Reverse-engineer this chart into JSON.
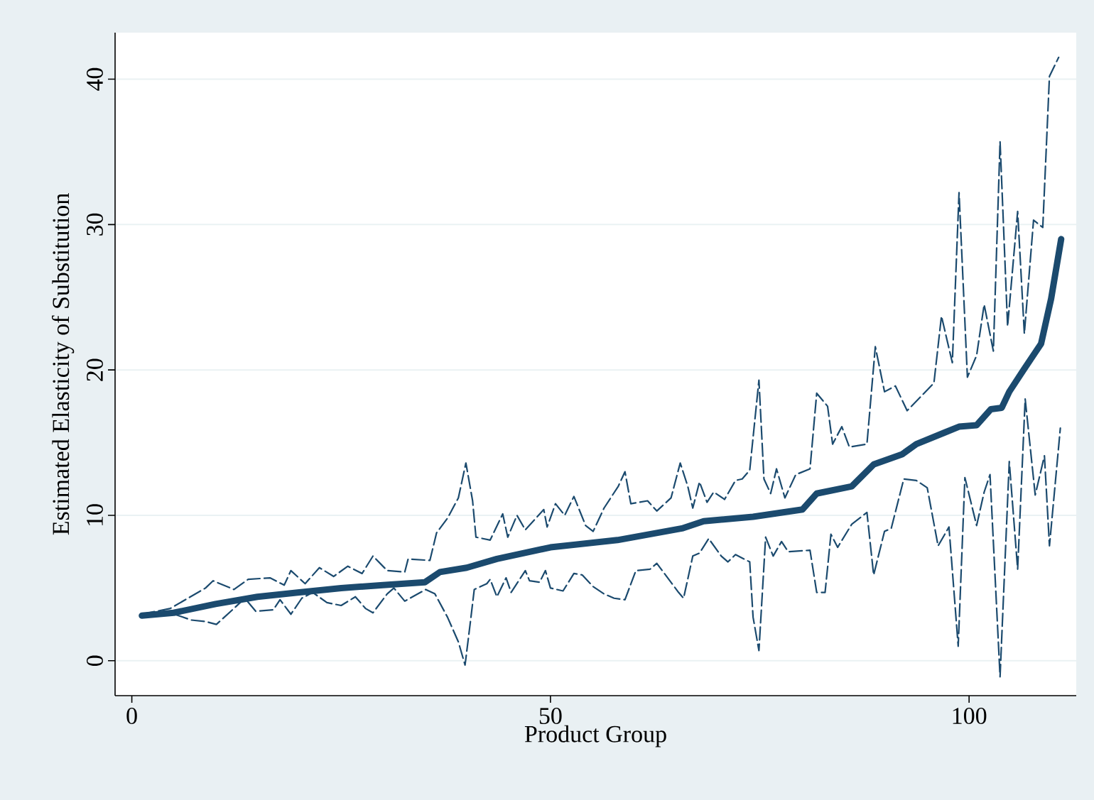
{
  "chart_data": {
    "type": "line",
    "xlabel": "Product Group",
    "ylabel": "Estimated Elasticity of Substitution",
    "xlim": [
      -2,
      112.8
    ],
    "ylim": [
      -2.4,
      43.2
    ],
    "xticks": [
      0,
      50,
      100
    ],
    "yticks": [
      0,
      10,
      20,
      30,
      40
    ],
    "grid": "y",
    "series": [
      {
        "color": "#1b4a6e",
        "line_style": "solid",
        "x": [
          1.2,
          5,
          10,
          15,
          20,
          25,
          30,
          35,
          36.8,
          40,
          43.6,
          50,
          58,
          65.7,
          68.3,
          74.2,
          80.1,
          81.8,
          86,
          88.6,
          92,
          93.7,
          97.1,
          98.8,
          100.9,
          102.6,
          103.9,
          104.8,
          106.5,
          108.6,
          109.8,
          111
        ],
        "values": [
          3.1,
          3.3,
          3.9,
          4.4,
          4.7,
          5.0,
          5.2,
          5.4,
          6.1,
          6.4,
          7.0,
          7.8,
          8.3,
          9.1,
          9.6,
          9.9,
          10.4,
          11.5,
          12.0,
          13.5,
          14.2,
          14.9,
          15.7,
          16.1,
          16.2,
          17.3,
          17.4,
          18.5,
          20.0,
          21.8,
          24.9,
          29.0
        ]
      },
      {
        "color": "#1b4a6e",
        "line_style": "dashed",
        "x": [
          1.2,
          4.6,
          8.8,
          9.7,
          12.2,
          13.9,
          16.5,
          18.2,
          19,
          20.7,
          22.4,
          24.1,
          25.8,
          27.5,
          28.8,
          30.5,
          32.6,
          33,
          35.6,
          36.4,
          37.7,
          39,
          39.9,
          40.7,
          41.1,
          42.8,
          44.3,
          44.9,
          46,
          47,
          49.2,
          49.6,
          50.6,
          51.7,
          52.8,
          54.2,
          55.1,
          56.4,
          58.1,
          58.9,
          59.6,
          61.6,
          62.7,
          64.4,
          65.5,
          66.4,
          67,
          67.8,
          68.7,
          69.5,
          70.8,
          72.1,
          72.9,
          73.8,
          74.9,
          75.5,
          76.3,
          77,
          78,
          79.3,
          81,
          81.8,
          83.1,
          83.7,
          84.8,
          85.7,
          87.8,
          88.8,
          89.9,
          91.2,
          92.6,
          95.8,
          96.7,
          98,
          98.8,
          99.8,
          100.9,
          101.8,
          102.9,
          103.7,
          104.6,
          105.8,
          106.6,
          107.7,
          108.8,
          109.6,
          110.7
        ],
        "values": [
          3.2,
          3.6,
          5.0,
          5.5,
          4.9,
          5.6,
          5.7,
          5.2,
          6.2,
          5.3,
          6.4,
          5.8,
          6.5,
          6.0,
          7.2,
          6.2,
          6.1,
          7.0,
          6.9,
          8.8,
          9.8,
          11.2,
          13.6,
          11.0,
          8.5,
          8.3,
          10.1,
          8.5,
          10.0,
          9.0,
          10.4,
          9.2,
          10.8,
          10.0,
          11.3,
          9.3,
          8.9,
          10.5,
          12.0,
          13.0,
          10.8,
          11.0,
          10.3,
          11.2,
          13.6,
          12.0,
          10.5,
          12.3,
          10.9,
          11.6,
          11.1,
          12.4,
          12.5,
          13.1,
          19.3,
          12.5,
          11.5,
          13.2,
          11.2,
          12.8,
          13.2,
          18.4,
          17.5,
          14.9,
          16.1,
          14.7,
          14.9,
          21.6,
          18.5,
          18.9,
          17.2,
          19.1,
          23.7,
          20.5,
          32.2,
          19.5,
          21.0,
          24.5,
          21.3,
          35.7,
          23.0,
          30.9,
          22.5,
          30.3,
          29.8,
          40.2,
          41.5
        ]
      },
      {
        "color": "#1b4a6e",
        "line_style": "dashed",
        "x": [
          1.2,
          4.6,
          7.1,
          8.8,
          10.1,
          12.2,
          13.5,
          14.8,
          16.9,
          17.7,
          19,
          20.3,
          21.6,
          23.3,
          25,
          26.7,
          27.9,
          28.8,
          30.5,
          31.3,
          32.6,
          35.1,
          36.2,
          37.7,
          39,
          39.8,
          40.4,
          40.9,
          42.4,
          42.8,
          43.6,
          44.7,
          45.3,
          47,
          47.5,
          48.7,
          49.4,
          50,
          51.5,
          52.8,
          53.8,
          55.1,
          56.4,
          57.6,
          58.9,
          60.2,
          61.9,
          62.7,
          65.3,
          65.9,
          67,
          67.8,
          68.9,
          70.4,
          71.2,
          72.1,
          73.8,
          74.2,
          74.9,
          75.7,
          76.6,
          77.6,
          78.4,
          81,
          81.8,
          82.8,
          83.5,
          84.3,
          86,
          87.8,
          88.6,
          89.9,
          90.7,
          92.2,
          93.7,
          95,
          96.3,
          97.6,
          98.7,
          99.5,
          100.9,
          101.8,
          102.5,
          103.7,
          104.8,
          105.8,
          106.7,
          107.9,
          109,
          109.6,
          110.9
        ],
        "values": [
          3.0,
          3.3,
          2.8,
          2.7,
          2.5,
          3.6,
          4.3,
          3.4,
          3.5,
          4.2,
          3.2,
          4.3,
          4.7,
          4.0,
          3.8,
          4.4,
          3.6,
          3.3,
          4.6,
          5.0,
          4.1,
          4.9,
          4.6,
          3.0,
          1.3,
          -0.3,
          2.5,
          4.9,
          5.3,
          5.6,
          4.4,
          5.7,
          4.7,
          6.2,
          5.5,
          5.4,
          6.2,
          5.0,
          4.8,
          6.0,
          5.9,
          5.1,
          4.6,
          4.3,
          4.2,
          6.2,
          6.3,
          6.7,
          4.7,
          4.3,
          7.2,
          7.4,
          8.4,
          7.2,
          6.8,
          7.3,
          6.8,
          3.0,
          0.7,
          8.5,
          7.2,
          8.2,
          7.5,
          7.6,
          4.7,
          4.7,
          8.7,
          7.8,
          9.4,
          10.2,
          5.9,
          8.9,
          9.1,
          12.5,
          12.4,
          11.9,
          7.9,
          9.2,
          1.0,
          12.6,
          9.3,
          11.6,
          12.8,
          -1.1,
          13.7,
          6.3,
          18.0,
          11.4,
          14.1,
          7.9,
          16.0
        ]
      }
    ]
  }
}
